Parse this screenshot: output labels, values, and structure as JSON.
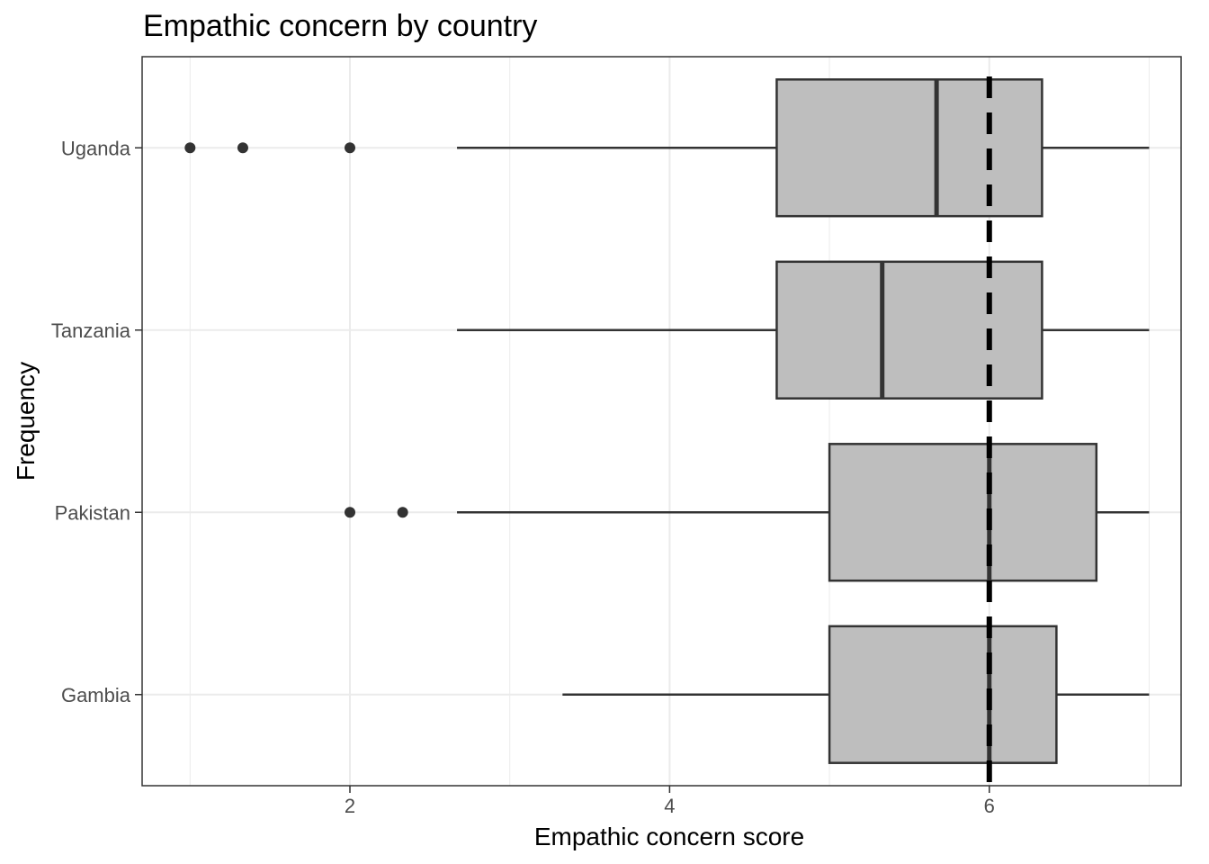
{
  "chart_data": {
    "type": "boxplot",
    "orientation": "horizontal",
    "title": "Empathic concern by country",
    "xlabel": "Empathic concern score",
    "ylabel": "Frequency",
    "xlim": [
      0.7,
      7.2
    ],
    "x_ticks": [
      2,
      4,
      6
    ],
    "x_minor_gridlines": [
      1,
      3,
      5,
      7
    ],
    "grid": true,
    "categories": [
      "Gambia",
      "Pakistan",
      "Tanzania",
      "Uganda"
    ],
    "boxes": [
      {
        "label": "Gambia",
        "whisker_low": 3.33,
        "q1": 5.0,
        "median": 6.0,
        "q3": 6.42,
        "whisker_high": 7.0,
        "outliers": []
      },
      {
        "label": "Pakistan",
        "whisker_low": 2.67,
        "q1": 5.0,
        "median": 6.0,
        "q3": 6.67,
        "whisker_high": 7.0,
        "outliers": [
          2.0,
          2.33
        ]
      },
      {
        "label": "Tanzania",
        "whisker_low": 2.67,
        "q1": 4.67,
        "median": 5.33,
        "q3": 6.33,
        "whisker_high": 7.0,
        "outliers": []
      },
      {
        "label": "Uganda",
        "whisker_low": 2.67,
        "q1": 4.67,
        "median": 5.67,
        "q3": 6.33,
        "whisker_high": 7.0,
        "outliers": [
          1.0,
          1.33,
          2.0
        ]
      }
    ],
    "reference_line": {
      "x": 6.0,
      "style": "dashed",
      "color": "#000000"
    },
    "colors": {
      "box_fill": "#bebebe",
      "box_stroke": "#333333",
      "grid": "#ebebeb",
      "panel_border": "#333333"
    }
  }
}
